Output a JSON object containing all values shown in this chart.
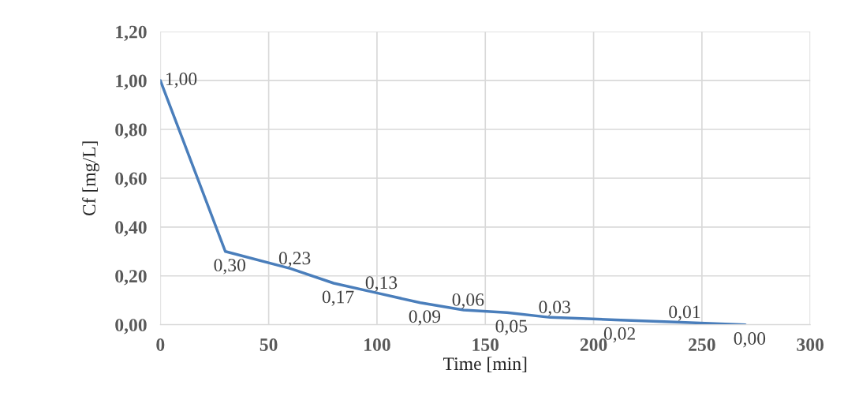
{
  "chart_data": {
    "type": "line",
    "xlabel": "Time [min]",
    "ylabel": "Cf [mg/L]",
    "x": [
      0,
      30,
      60,
      80,
      100,
      120,
      140,
      160,
      180,
      210,
      240,
      270
    ],
    "series": [
      {
        "color": "#4a7ebb",
        "values": [
          1.0,
          0.3,
          0.23,
          0.17,
          0.13,
          0.09,
          0.06,
          0.05,
          0.03,
          0.02,
          0.01,
          0.0
        ],
        "value_labels": [
          "1,00",
          "0,30",
          "0,23",
          "0,17",
          "0,13",
          "0,09",
          "0,06",
          "0,05",
          "0,03",
          "0,02",
          "0,01",
          "0,00"
        ]
      }
    ],
    "xlim": [
      0,
      300
    ],
    "xticks": [
      0,
      50,
      100,
      150,
      200,
      250,
      300
    ],
    "ylim": [
      0,
      1.2
    ],
    "yticks": [
      {
        "value": 0,
        "label": "0,00"
      },
      {
        "value": 0.2,
        "label": "0,20"
      },
      {
        "value": 0.4,
        "label": "0,40"
      },
      {
        "value": 0.6,
        "label": "0,60"
      },
      {
        "value": 0.8,
        "label": "0,80"
      },
      {
        "value": 1.0,
        "label": "1,00"
      },
      {
        "value": 1.2,
        "label": "1,20"
      }
    ],
    "grid": true,
    "marker": "none",
    "line_style": "solid",
    "legend": false
  }
}
